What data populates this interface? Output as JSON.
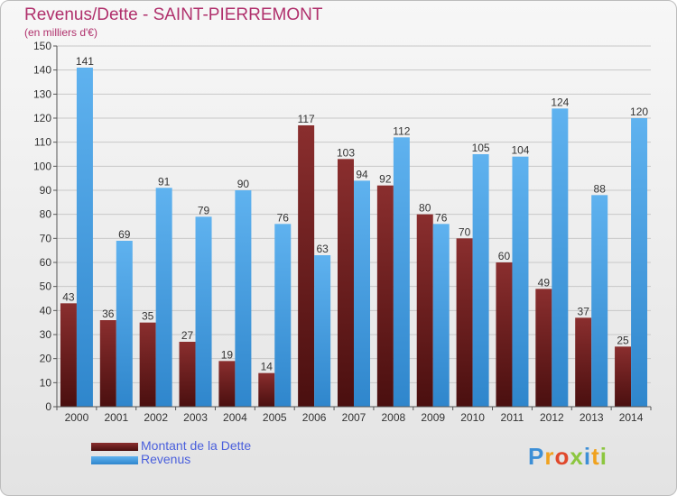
{
  "title": "Revenus/Dette - SAINT-PIERREMONT",
  "subtitle": "(en milliers d'€)",
  "logo_text": "Proxiti",
  "colors": {
    "dette": "#6e1f1f",
    "revenus": "#4aa3e6",
    "axis_text": "#333333",
    "title": "#b0306c"
  },
  "chart_data": {
    "type": "bar",
    "title": "Revenus/Dette - SAINT-PIERREMONT",
    "subtitle": "(en milliers d'€)",
    "categories": [
      "2000",
      "2001",
      "2002",
      "2003",
      "2004",
      "2005",
      "2006",
      "2007",
      "2008",
      "2009",
      "2010",
      "2011",
      "2012",
      "2013",
      "2014"
    ],
    "series": [
      {
        "name": "Montant de la Dette",
        "values": [
          43,
          36,
          35,
          27,
          19,
          14,
          117,
          103,
          92,
          80,
          70,
          60,
          49,
          37,
          25
        ]
      },
      {
        "name": "Revenus",
        "values": [
          141,
          69,
          91,
          79,
          90,
          76,
          63,
          94,
          112,
          76,
          105,
          104,
          124,
          88,
          120
        ]
      }
    ],
    "ylim": [
      0,
      150
    ],
    "yticks": [
      0,
      10,
      20,
      30,
      40,
      50,
      60,
      70,
      80,
      90,
      100,
      110,
      120,
      130,
      140,
      150
    ],
    "grid": true,
    "legend_position": "bottom-left",
    "data_labels": true
  }
}
